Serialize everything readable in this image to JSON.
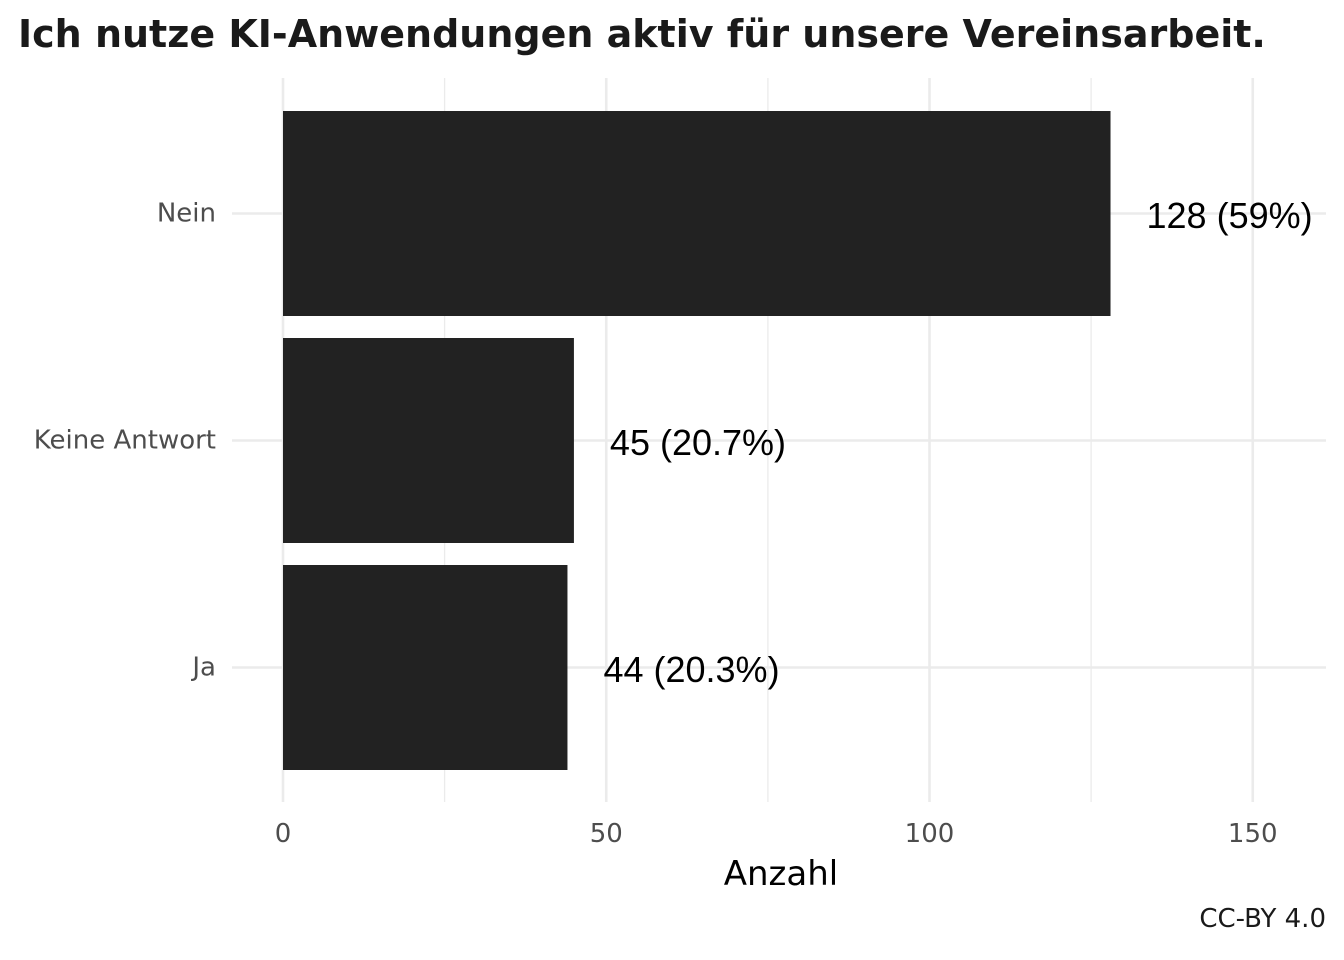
{
  "chart_data": {
    "type": "bar",
    "orientation": "horizontal",
    "title": "Ich nutze KI-Anwendungen aktiv für unsere Vereinsarbeit.",
    "categories": [
      "Nein",
      "Keine Antwort",
      "Ja"
    ],
    "values": [
      128,
      45,
      44
    ],
    "data_labels": [
      "128 (59%)",
      "45 (20.7%)",
      "44 (20.3%)"
    ],
    "xlabel": "Anzahl",
    "ylabel": "",
    "xlim": [
      0,
      160
    ],
    "xticks": [
      0,
      50,
      100,
      150
    ],
    "xtick_labels": [
      "0",
      "50",
      "100",
      "150"
    ],
    "grid": true,
    "legend": "none",
    "bar_color": "#222222",
    "caption": "CC-BY 4.0"
  }
}
